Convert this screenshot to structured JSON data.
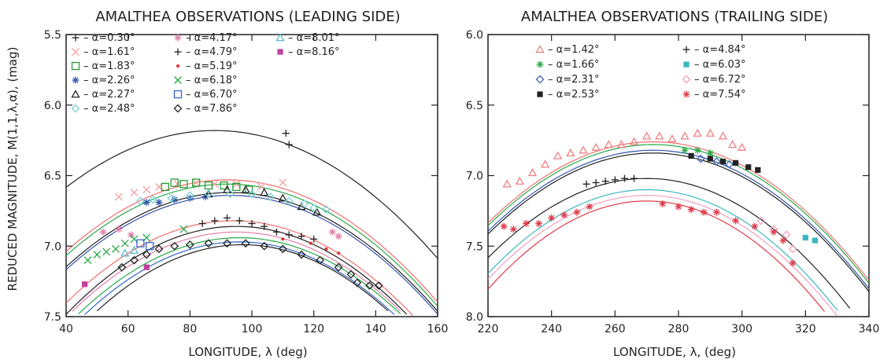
{
  "chart_data": [
    {
      "type": "scatter",
      "title": "AMALTHEA OBSERVATIONS (LEADING SIDE)",
      "xlabel": "LONGITUDE, λ (deg)",
      "ylabel": "REDUCED MAGNITUDE, M(1,1,λ,α), (mag)",
      "xlim": [
        40,
        160
      ],
      "ylim": [
        5.5,
        7.5
      ],
      "y_inverted": true,
      "xticks": [
        "40",
        "60",
        "80",
        "100",
        "120",
        "140",
        "160"
      ],
      "yticks": [
        "5.5",
        "6.0",
        "6.5",
        "7.0",
        "7.5"
      ],
      "legend_placement": "top",
      "series": [
        {
          "name": "α=0.30°",
          "marker": "plus",
          "color": "#222222",
          "points": [
            [
              111,
              6.2
            ],
            [
              112,
              6.28
            ]
          ]
        },
        {
          "name": "α=1.61°",
          "marker": "x",
          "color": "#f4a0a0",
          "points": [
            [
              57,
              6.65
            ],
            [
              62,
              6.62
            ],
            [
              66,
              6.6
            ],
            [
              70,
              6.58
            ],
            [
              76,
              6.56
            ],
            [
              82,
              6.55
            ],
            [
              88,
              6.56
            ],
            [
              95,
              6.56
            ],
            [
              103,
              6.58
            ],
            [
              110,
              6.55
            ]
          ]
        },
        {
          "name": "α=1.83°",
          "marker": "square",
          "color": "#2a9d3a",
          "points": [
            [
              72,
              6.58
            ],
            [
              75,
              6.55
            ],
            [
              78,
              6.56
            ],
            [
              82,
              6.55
            ],
            [
              86,
              6.57
            ],
            [
              91,
              6.57
            ],
            [
              95,
              6.58
            ],
            [
              99,
              6.6
            ]
          ]
        },
        {
          "name": "α=2.26°",
          "marker": "asterisk",
          "color": "#3355aa",
          "points": [
            [
              66,
              6.69
            ],
            [
              70,
              6.69
            ],
            [
              75,
              6.67
            ],
            [
              80,
              6.66
            ],
            [
              85,
              6.65
            ]
          ]
        },
        {
          "name": "α=2.27°",
          "marker": "triangle",
          "color": "#222222",
          "points": [
            [
              86,
              6.63
            ],
            [
              92,
              6.6
            ],
            [
              98,
              6.6
            ],
            [
              104,
              6.62
            ],
            [
              110,
              6.66
            ],
            [
              116,
              6.72
            ],
            [
              121,
              6.76
            ]
          ]
        },
        {
          "name": "α=2.48°",
          "marker": "diamond",
          "color": "#7ad0d8",
          "points": [
            [
              64,
              6.68
            ],
            [
              68,
              6.67
            ],
            [
              74,
              6.66
            ],
            [
              80,
              6.64
            ],
            [
              86,
              6.63
            ],
            [
              93,
              6.63
            ],
            [
              100,
              6.63
            ],
            [
              106,
              6.65
            ],
            [
              112,
              6.68
            ],
            [
              117,
              6.7
            ],
            [
              120,
              6.73
            ],
            [
              124,
              6.74
            ]
          ]
        },
        {
          "name": "α=4.17°",
          "marker": "asterisk",
          "color": "#e080a8",
          "points": [
            [
              52,
              6.9
            ],
            [
              57,
              6.88
            ],
            [
              61,
              6.92
            ],
            [
              126,
              6.9
            ],
            [
              128,
              6.93
            ]
          ]
        },
        {
          "name": "α=4.79°",
          "marker": "plus",
          "color": "#222222",
          "points": [
            [
              84,
              6.84
            ],
            [
              88,
              6.82
            ],
            [
              92,
              6.8
            ],
            [
              96,
              6.82
            ],
            [
              100,
              6.84
            ],
            [
              104,
              6.86
            ],
            [
              108,
              6.9
            ],
            [
              112,
              6.92
            ],
            [
              116,
              6.93
            ],
            [
              120,
              6.95
            ]
          ]
        },
        {
          "name": "α=5.19°",
          "marker": "dot",
          "color": "#e03030",
          "points": [
            [
              110,
              6.95
            ],
            [
              119,
              6.98
            ],
            [
              124,
              7.02
            ],
            [
              128,
              7.05
            ]
          ]
        },
        {
          "name": "α=6.18°",
          "marker": "x",
          "color": "#2aa84a",
          "points": [
            [
              47,
              7.1
            ],
            [
              50,
              7.06
            ],
            [
              53,
              7.04
            ],
            [
              56,
              7.02
            ],
            [
              59,
              6.98
            ],
            [
              62,
              6.95
            ],
            [
              66,
              6.94
            ],
            [
              78,
              6.88
            ]
          ]
        },
        {
          "name": "α=6.70°",
          "marker": "square",
          "color": "#3366cc",
          "points": [
            [
              64,
              6.98
            ],
            [
              67,
              7.0
            ]
          ]
        },
        {
          "name": "α=7.86°",
          "marker": "diamond",
          "color": "#222222",
          "points": [
            [
              58,
              7.15
            ],
            [
              62,
              7.1
            ],
            [
              66,
              7.06
            ],
            [
              70,
              7.02
            ],
            [
              75,
              7.0
            ],
            [
              80,
              6.99
            ],
            [
              86,
              6.98
            ],
            [
              92,
              6.98
            ],
            [
              98,
              6.98
            ],
            [
              104,
              7.0
            ],
            [
              110,
              7.02
            ],
            [
              116,
              7.06
            ],
            [
              122,
              7.1
            ],
            [
              128,
              7.15
            ],
            [
              132,
              7.2
            ],
            [
              134,
              7.26
            ],
            [
              138,
              7.28
            ],
            [
              141,
              7.28
            ]
          ]
        },
        {
          "name": "α=8.01°",
          "marker": "triangle",
          "color": "#5ab8c8",
          "points": [
            [
              59,
              7.05
            ],
            [
              62,
              7.03
            ]
          ]
        },
        {
          "name": "α=8.16°",
          "marker": "filled-square",
          "color": "#c040a0",
          "points": [
            [
              46,
              7.27
            ],
            [
              66,
              7.15
            ]
          ]
        }
      ]
    },
    {
      "type": "scatter",
      "title": "AMALTHEA OBSERVATIONS (TRAILING SIDE)",
      "xlabel": "LONGITUDE, λ, (deg)",
      "xlim": [
        220,
        340
      ],
      "ylim": [
        6.0,
        8.0
      ],
      "y_inverted": true,
      "xticks": [
        "220",
        "240",
        "260",
        "280",
        "300",
        "320",
        "340"
      ],
      "yticks": [
        "6.0",
        "6.5",
        "7.0",
        "7.5",
        "8.0"
      ],
      "legend_placement": "top",
      "series": [
        {
          "name": "α=1.42°",
          "marker": "triangle",
          "color": "#f08080",
          "points": [
            [
              226,
              7.06
            ],
            [
              230,
              7.04
            ],
            [
              234,
              6.98
            ],
            [
              238,
              6.92
            ],
            [
              242,
              6.86
            ],
            [
              246,
              6.84
            ],
            [
              250,
              6.82
            ],
            [
              254,
              6.8
            ],
            [
              258,
              6.78
            ],
            [
              262,
              6.78
            ],
            [
              266,
              6.76
            ],
            [
              270,
              6.72
            ],
            [
              274,
              6.72
            ],
            [
              278,
              6.74
            ],
            [
              282,
              6.72
            ],
            [
              286,
              6.7
            ],
            [
              290,
              6.7
            ],
            [
              294,
              6.72
            ],
            [
              297,
              6.78
            ],
            [
              300,
              6.8
            ]
          ]
        },
        {
          "name": "α=1.66°",
          "marker": "asterisk",
          "color": "#2aa84a",
          "points": [
            [
              282,
              6.82
            ],
            [
              286,
              6.82
            ],
            [
              290,
              6.84
            ]
          ]
        },
        {
          "name": "α=2.31°",
          "marker": "diamond",
          "color": "#4466bb",
          "points": [
            [
              287,
              6.88
            ],
            [
              292,
              6.9
            ],
            [
              296,
              6.92
            ]
          ]
        },
        {
          "name": "α=2.53°",
          "marker": "filled-square",
          "color": "#222222",
          "points": [
            [
              284,
              6.86
            ],
            [
              290,
              6.88
            ],
            [
              294,
              6.9
            ],
            [
              298,
              6.91
            ],
            [
              302,
              6.94
            ],
            [
              305,
              6.96
            ]
          ]
        },
        {
          "name": "α=4.84°",
          "marker": "plus",
          "color": "#222222",
          "points": [
            [
              251,
              7.06
            ],
            [
              254,
              7.05
            ],
            [
              257,
              7.04
            ],
            [
              260,
              7.03
            ],
            [
              263,
              7.02
            ],
            [
              266,
              7.02
            ]
          ]
        },
        {
          "name": "α=6.03°",
          "marker": "filled-square",
          "color": "#38b8c0",
          "points": [
            [
              320,
              7.44
            ],
            [
              323,
              7.46
            ]
          ]
        },
        {
          "name": "α=6.72°",
          "marker": "diamond",
          "color": "#f0a0c0",
          "points": [
            [
              306,
              7.32
            ],
            [
              310,
              7.38
            ],
            [
              314,
              7.42
            ],
            [
              316,
              7.52
            ]
          ]
        },
        {
          "name": "α=7.54°",
          "marker": "asterisk",
          "color": "#e03a4a",
          "points": [
            [
              225,
              7.36
            ],
            [
              228,
              7.38
            ],
            [
              232,
              7.34
            ],
            [
              236,
              7.34
            ],
            [
              240,
              7.3
            ],
            [
              244,
              7.28
            ],
            [
              248,
              7.26
            ],
            [
              252,
              7.22
            ],
            [
              275,
              7.2
            ],
            [
              280,
              7.22
            ],
            [
              284,
              7.24
            ],
            [
              288,
              7.26
            ],
            [
              292,
              7.26
            ],
            [
              298,
              7.32
            ],
            [
              304,
              7.36
            ],
            [
              310,
              7.4
            ],
            [
              313,
              7.46
            ],
            [
              316,
              7.62
            ]
          ]
        }
      ]
    }
  ]
}
